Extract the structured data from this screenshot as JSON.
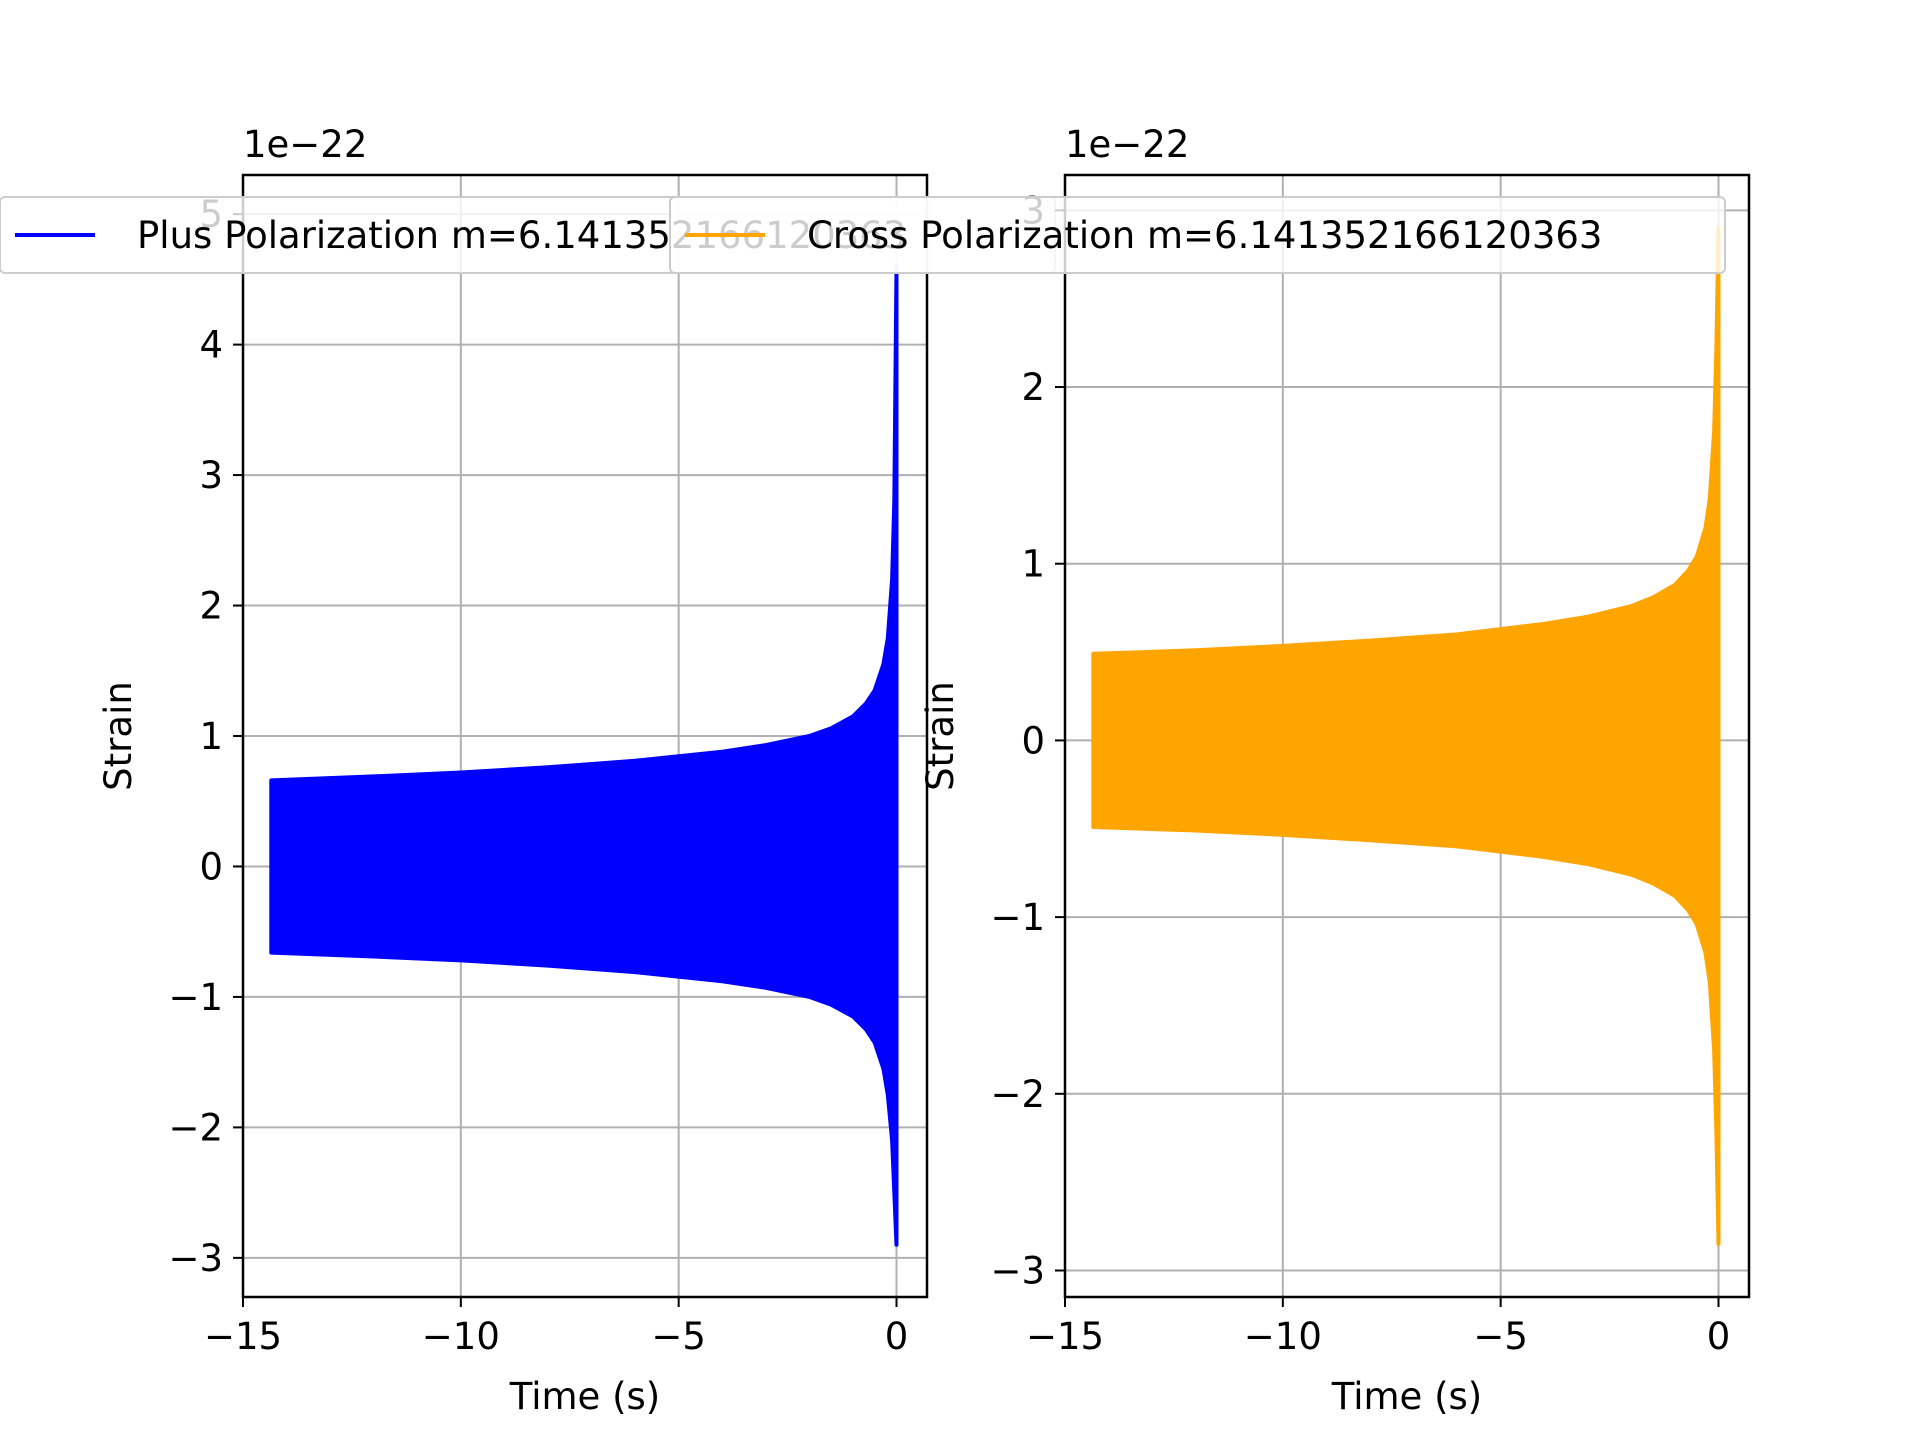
{
  "chart_data": [
    {
      "type": "area",
      "title": "",
      "xlabel": "Time (s)",
      "ylabel": "Strain",
      "offset_label": "1e−22",
      "xlim": [
        -15,
        0.7
      ],
      "ylim": [
        -3.3,
        5.3
      ],
      "xticks": [
        -15,
        -10,
        -5,
        0
      ],
      "xtick_labels": [
        "−15",
        "−10",
        "−5",
        "0"
      ],
      "yticks": [
        -3,
        -2,
        -1,
        0,
        1,
        2,
        3,
        4,
        5
      ],
      "ytick_labels": [
        "−3",
        "−2",
        "−1",
        "0",
        "1",
        "2",
        "3",
        "4",
        "5"
      ],
      "grid": true,
      "legend_position": "top",
      "series": [
        {
          "name": "Plus Polarization m=6.141352166120363",
          "color": "#0000ff",
          "x": [
            -14.35,
            -12,
            -10,
            -8,
            -6,
            -4,
            -3,
            -2,
            -1.5,
            -1,
            -0.7,
            -0.5,
            -0.3,
            -0.2,
            -0.1,
            -0.05,
            0
          ],
          "upper": [
            0.66,
            0.69,
            0.72,
            0.76,
            0.81,
            0.88,
            0.93,
            1.0,
            1.06,
            1.15,
            1.25,
            1.35,
            1.55,
            1.75,
            2.2,
            2.8,
            4.6
          ],
          "lower": [
            -0.66,
            -0.69,
            -0.72,
            -0.76,
            -0.81,
            -0.88,
            -0.93,
            -1.0,
            -1.06,
            -1.15,
            -1.25,
            -1.35,
            -1.55,
            -1.75,
            -2.1,
            -2.5,
            -2.9
          ]
        }
      ]
    },
    {
      "type": "area",
      "title": "",
      "xlabel": "Time (s)",
      "ylabel": "Strain",
      "offset_label": "1e−22",
      "xlim": [
        -15,
        0.7
      ],
      "ylim": [
        -3.15,
        3.2
      ],
      "xticks": [
        -15,
        -10,
        -5,
        0
      ],
      "xtick_labels": [
        "−15",
        "−10",
        "−5",
        "0"
      ],
      "yticks": [
        -3,
        -2,
        -1,
        0,
        1,
        2,
        3
      ],
      "ytick_labels": [
        "−3",
        "−2",
        "−1",
        "0",
        "1",
        "2",
        "3"
      ],
      "grid": true,
      "legend_position": "top",
      "series": [
        {
          "name": "Cross Polarization m=6.141352166120363",
          "color": "#ffa500",
          "x": [
            -14.35,
            -12,
            -10,
            -8,
            -6,
            -4,
            -3,
            -2,
            -1.5,
            -1,
            -0.7,
            -0.5,
            -0.3,
            -0.2,
            -0.1,
            -0.05,
            0
          ],
          "upper": [
            0.49,
            0.51,
            0.535,
            0.565,
            0.6,
            0.66,
            0.7,
            0.76,
            0.81,
            0.88,
            0.96,
            1.04,
            1.2,
            1.37,
            1.75,
            2.2,
            2.9
          ],
          "lower": [
            -0.49,
            -0.51,
            -0.535,
            -0.565,
            -0.6,
            -0.66,
            -0.7,
            -0.76,
            -0.81,
            -0.88,
            -0.96,
            -1.04,
            -1.2,
            -1.37,
            -1.75,
            -2.2,
            -2.85
          ]
        }
      ]
    }
  ]
}
